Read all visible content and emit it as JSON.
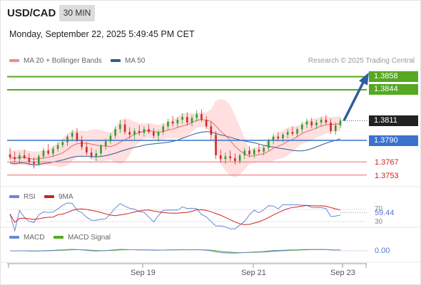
{
  "header": {
    "pair": "USD/CAD",
    "timeframe": "30 MIN",
    "datetime": "Monday, September 22, 2025 5:49:45 PM CET"
  },
  "legend": {
    "ma20": "MA 20 + Bollinger Bands",
    "ma50": "MA 50",
    "copyright": "Research © 2025 Trading Central"
  },
  "levels": {
    "r2": "1.3858",
    "r1": "1.3844",
    "last": "1.3811",
    "pivot": "1.3790",
    "s1": "1.3767",
    "s2": "1.3753"
  },
  "rsi_panel": {
    "label": "RSI",
    "ma_label": "9MA",
    "value": "59.44",
    "level_70": "70",
    "level_30": "30"
  },
  "macd_panel": {
    "label": "MACD",
    "signal_label": "MACD Signal",
    "value": "0.00"
  },
  "x_axis": {
    "ticks": [
      "Sep 19",
      "Sep 21",
      "Sep 23"
    ]
  },
  "colors": {
    "bull": "#2f9e2f",
    "bear": "#cc2a2a",
    "ma20": "#e26a6a",
    "ma50": "#2f5d99",
    "band": "#ffd4d4",
    "resistance": "#55a822",
    "pivot": "#3a72cc",
    "support": "#ee8888",
    "rsi": "#6b86d6",
    "rsi_ma": "#cc2222",
    "macd": "#6b86d6",
    "macd_signal": "#55aa22",
    "arrow": "#2e5ea0"
  },
  "chart_data": {
    "type": "candlestick",
    "title": "USD/CAD",
    "timeframe": "30 MIN",
    "x_ticks": [
      "Sep 19",
      "Sep 21",
      "Sep 23"
    ],
    "levels": {
      "resistance": [
        1.3858,
        1.3844
      ],
      "last": 1.3811,
      "pivot": 1.379,
      "support": [
        1.3767,
        1.3753
      ]
    },
    "price_range": [
      1.374,
      1.388
    ],
    "forecast": "up from 1.3811 toward 1.3858",
    "series": [
      {
        "name": "MA 20 + Bollinger Bands"
      },
      {
        "name": "MA 50"
      }
    ],
    "candles": [
      [
        1.3775,
        1.3782,
        1.3769,
        1.3772
      ],
      [
        1.3772,
        1.3778,
        1.3766,
        1.377
      ],
      [
        1.377,
        1.3777,
        1.3765,
        1.3774
      ],
      [
        1.3774,
        1.378,
        1.377,
        1.3771
      ],
      [
        1.3771,
        1.3776,
        1.3764,
        1.3767
      ],
      [
        1.3767,
        1.3772,
        1.376,
        1.3765
      ],
      [
        1.3765,
        1.3775,
        1.3763,
        1.3773
      ],
      [
        1.3773,
        1.3782,
        1.377,
        1.3779
      ],
      [
        1.3779,
        1.3786,
        1.3774,
        1.3776
      ],
      [
        1.3776,
        1.3784,
        1.3772,
        1.3781
      ],
      [
        1.3781,
        1.3788,
        1.3778,
        1.3785
      ],
      [
        1.3785,
        1.3791,
        1.3782,
        1.3788
      ],
      [
        1.3788,
        1.3796,
        1.3784,
        1.3794
      ],
      [
        1.3794,
        1.3801,
        1.379,
        1.3798
      ],
      [
        1.3798,
        1.3803,
        1.3788,
        1.379
      ],
      [
        1.379,
        1.3795,
        1.378,
        1.3783
      ],
      [
        1.3783,
        1.3788,
        1.3774,
        1.3777
      ],
      [
        1.3777,
        1.3782,
        1.377,
        1.3773
      ],
      [
        1.3773,
        1.378,
        1.3768,
        1.3776
      ],
      [
        1.3776,
        1.3786,
        1.3773,
        1.3784
      ],
      [
        1.3784,
        1.3792,
        1.378,
        1.3789
      ],
      [
        1.3789,
        1.3798,
        1.3786,
        1.3795
      ],
      [
        1.3795,
        1.3805,
        1.3792,
        1.3802
      ],
      [
        1.3802,
        1.3812,
        1.3798,
        1.3807
      ],
      [
        1.3807,
        1.3812,
        1.3796,
        1.3799
      ],
      [
        1.3799,
        1.3804,
        1.3792,
        1.3796
      ],
      [
        1.3796,
        1.3803,
        1.3791,
        1.38
      ],
      [
        1.38,
        1.3806,
        1.3795,
        1.3798
      ],
      [
        1.3798,
        1.3805,
        1.3794,
        1.3802
      ],
      [
        1.3802,
        1.3807,
        1.3797,
        1.3799
      ],
      [
        1.3799,
        1.3803,
        1.3792,
        1.3795
      ],
      [
        1.3795,
        1.3801,
        1.3788,
        1.3799
      ],
      [
        1.3799,
        1.3808,
        1.3796,
        1.3805
      ],
      [
        1.3805,
        1.3813,
        1.3801,
        1.381
      ],
      [
        1.381,
        1.3816,
        1.3805,
        1.3808
      ],
      [
        1.3808,
        1.3815,
        1.3804,
        1.3812
      ],
      [
        1.3812,
        1.3819,
        1.3808,
        1.3815
      ],
      [
        1.3815,
        1.382,
        1.3806,
        1.3809
      ],
      [
        1.3809,
        1.3817,
        1.3805,
        1.3814
      ],
      [
        1.3814,
        1.3822,
        1.381,
        1.3818
      ],
      [
        1.3818,
        1.3823,
        1.381,
        1.3812
      ],
      [
        1.3812,
        1.3816,
        1.3802,
        1.3805
      ],
      [
        1.3805,
        1.381,
        1.379,
        1.3796
      ],
      [
        1.3796,
        1.38,
        1.377,
        1.3774
      ],
      [
        1.3774,
        1.378,
        1.3766,
        1.377
      ],
      [
        1.377,
        1.3777,
        1.3765,
        1.3773
      ],
      [
        1.3773,
        1.3779,
        1.3768,
        1.3771
      ],
      [
        1.3771,
        1.3776,
        1.3764,
        1.3768
      ],
      [
        1.3768,
        1.3776,
        1.3765,
        1.3774
      ],
      [
        1.3774,
        1.3782,
        1.377,
        1.3779
      ],
      [
        1.3779,
        1.3784,
        1.3772,
        1.3775
      ],
      [
        1.3775,
        1.3782,
        1.3771,
        1.378
      ],
      [
        1.378,
        1.3786,
        1.3776,
        1.3778
      ],
      [
        1.3778,
        1.3784,
        1.3774,
        1.3782
      ],
      [
        1.3782,
        1.3792,
        1.3779,
        1.379
      ],
      [
        1.379,
        1.3797,
        1.3786,
        1.3794
      ],
      [
        1.3794,
        1.3799,
        1.3789,
        1.3792
      ],
      [
        1.3792,
        1.3798,
        1.3788,
        1.3796
      ],
      [
        1.3796,
        1.3802,
        1.3792,
        1.3799
      ],
      [
        1.3799,
        1.3805,
        1.3795,
        1.3797
      ],
      [
        1.3797,
        1.3804,
        1.3793,
        1.3802
      ],
      [
        1.3802,
        1.381,
        1.3798,
        1.3807
      ],
      [
        1.3807,
        1.3813,
        1.3803,
        1.381
      ],
      [
        1.381,
        1.3814,
        1.3803,
        1.3806
      ],
      [
        1.3806,
        1.3812,
        1.3802,
        1.3809
      ],
      [
        1.3809,
        1.3815,
        1.3805,
        1.3812
      ],
      [
        1.3812,
        1.3817,
        1.3807,
        1.3809
      ],
      [
        1.3809,
        1.3813,
        1.3797,
        1.38
      ],
      [
        1.38,
        1.3809,
        1.3796,
        1.3806
      ],
      [
        1.3806,
        1.3814,
        1.3803,
        1.3811
      ]
    ]
  }
}
